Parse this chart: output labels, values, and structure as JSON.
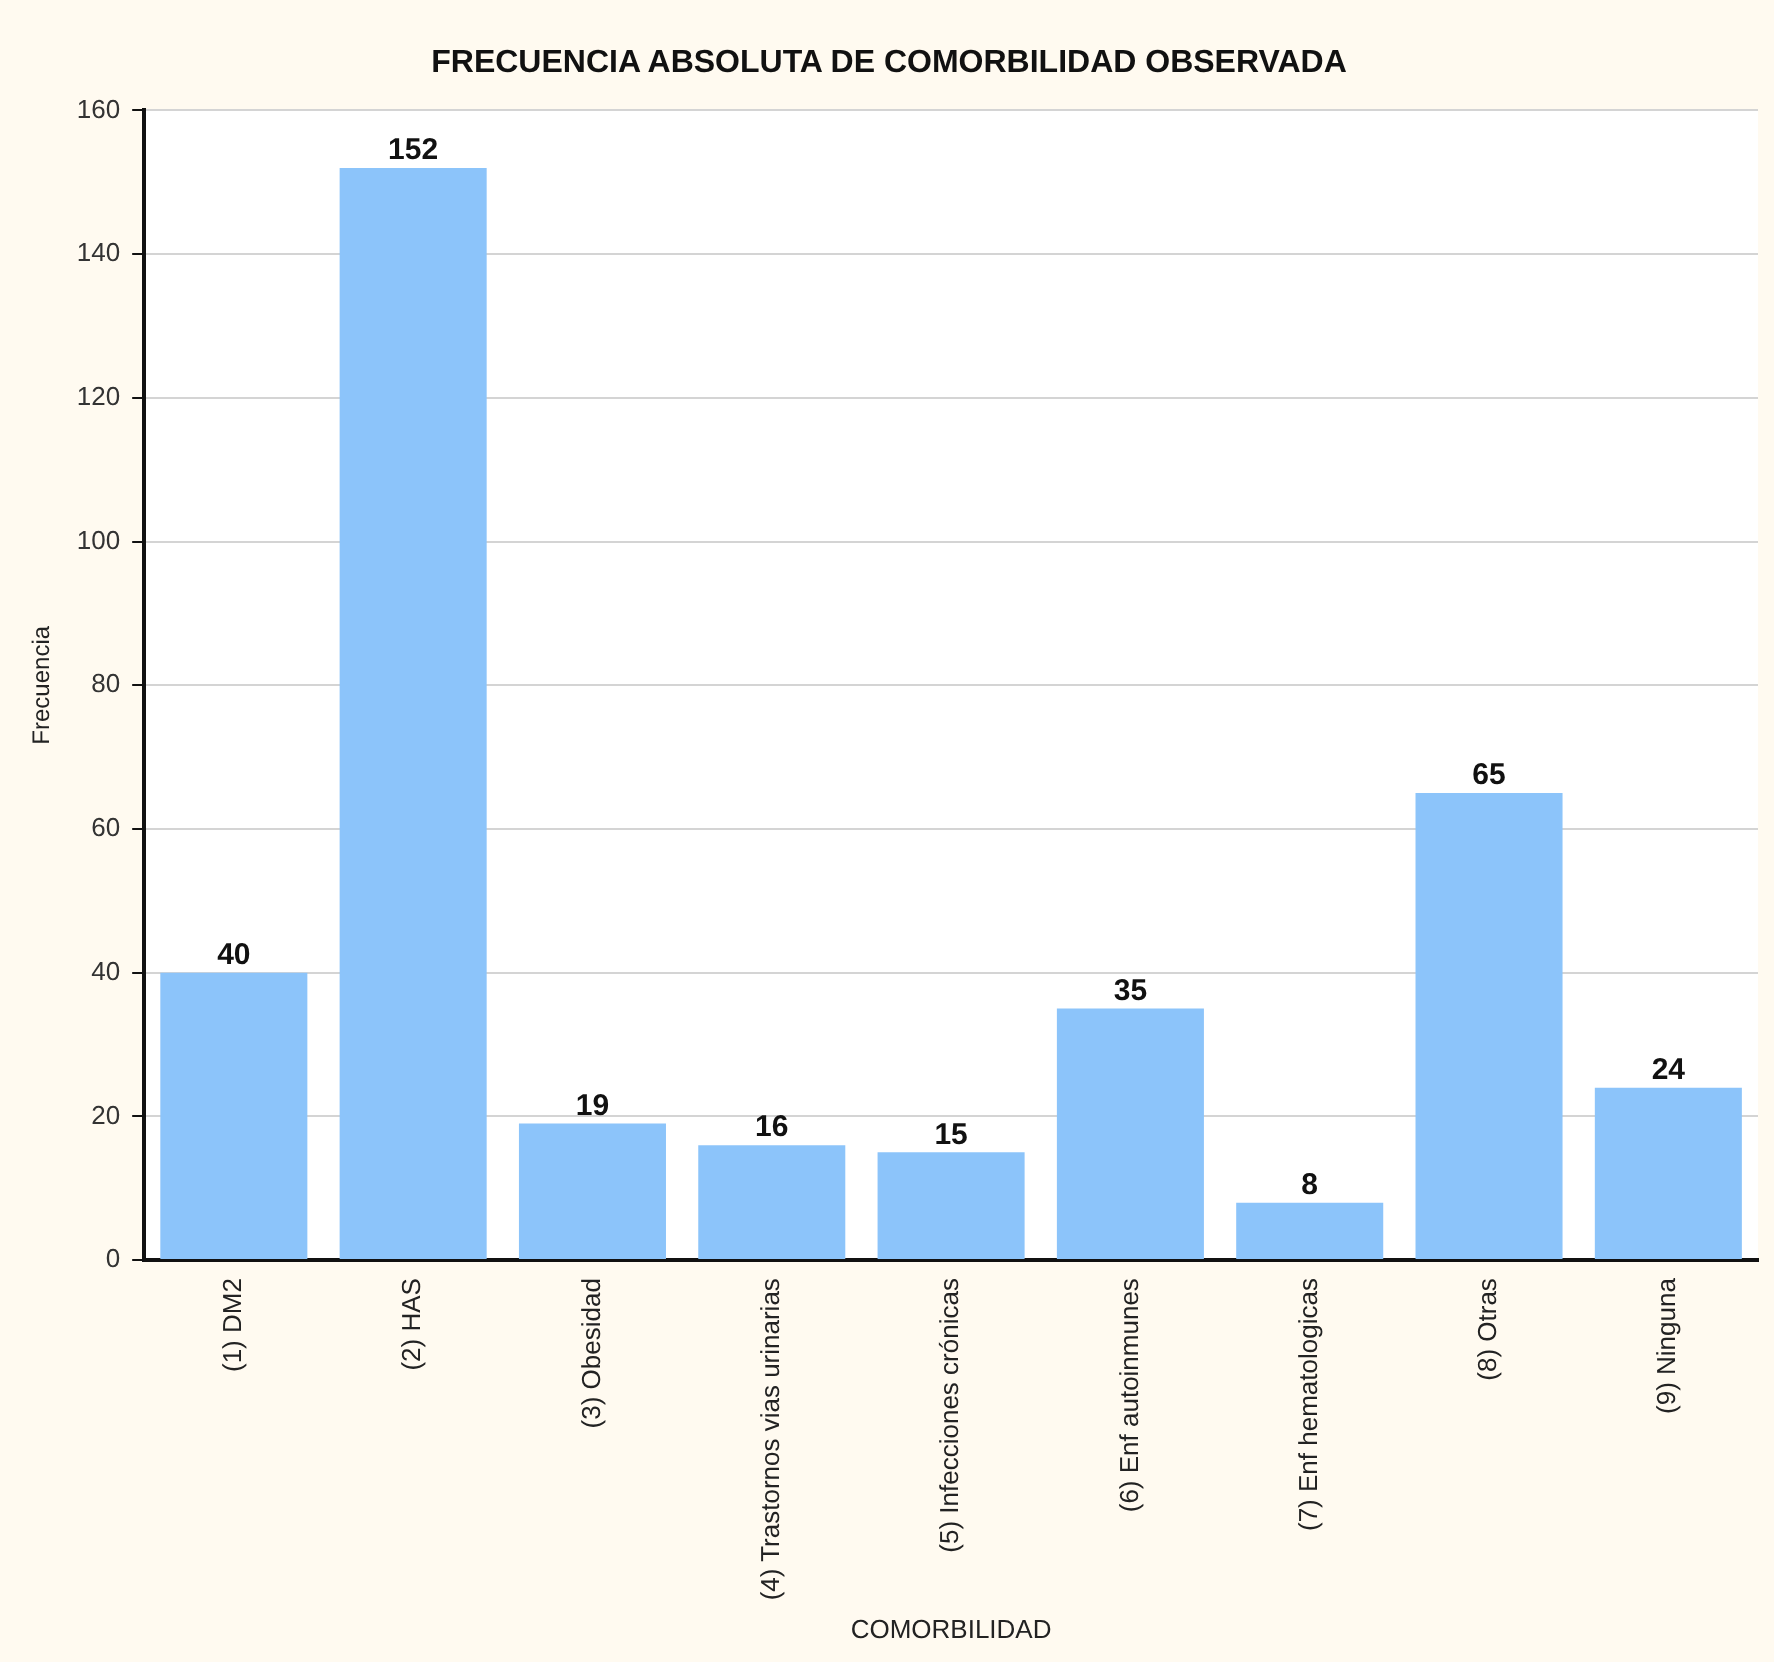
{
  "chart_data": {
    "type": "bar",
    "title": "FRECUENCIA ABSOLUTA DE COMORBILIDAD OBSERVADA",
    "xlabel": "COMORBILIDAD",
    "ylabel": "Frecuencia",
    "categories": [
      "(1) DM2",
      "(2) HAS",
      "(3) Obesidad",
      "(4) Trastornos vias urinarias",
      "(5) Infecciones crónicas",
      "(6) Enf autoinmunes",
      "(7) Enf hematologicas",
      "(8) Otras",
      "(9) Ninguna"
    ],
    "values": [
      40,
      152,
      19,
      16,
      15,
      35,
      8,
      65,
      24
    ],
    "color": "#8cc4fa",
    "ylim": [
      0,
      160
    ],
    "yticks": [
      0,
      20,
      40,
      60,
      80,
      100,
      120,
      140,
      160
    ],
    "grid": "y",
    "data_labels": true,
    "legend": false
  }
}
